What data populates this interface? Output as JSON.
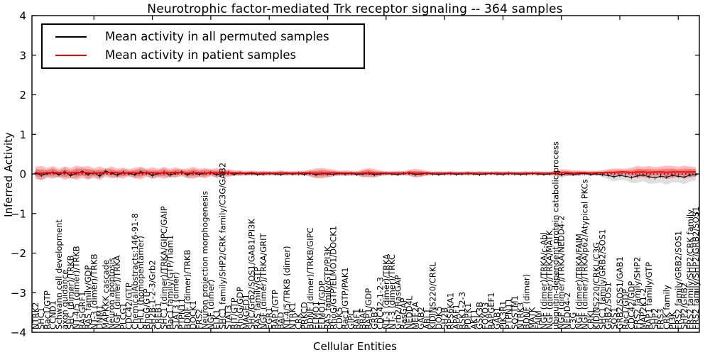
{
  "title": "Neurotrophic factor-mediated Trk receptor signaling -- 364 samples",
  "legend": {
    "permuted": "Mean activity in all permuted samples",
    "patient": "Mean activity in patient samples",
    "position": "upper left"
  },
  "axes": {
    "ylabel": "Inferred Activity",
    "xlabel": "Cellular Entities",
    "ylim": [
      -4,
      4
    ],
    "yticks": [
      4,
      3,
      2,
      1,
      0,
      -1,
      -2,
      -3,
      -4
    ],
    "x_major_tick_every": 10,
    "grid": false
  },
  "colors": {
    "patient_line": "#ff0000",
    "permuted_line": "#000000",
    "patient_band": "#ff0000",
    "patient_band_alpha": 0.26,
    "permuted_band": "#000000",
    "permuted_band_alpha": 0.13,
    "spine": "#000000",
    "background": "#ffffff"
  },
  "chart_data": {
    "type": "line",
    "title": "Neurotrophic factor-mediated Trk receptor signaling -- 364 samples",
    "xlabel": "Cellular Entities",
    "ylabel": "Inferred Activity",
    "ylim": [
      -4,
      4
    ],
    "yticks": [
      4,
      3,
      2,
      1,
      0,
      -1,
      -2,
      -3,
      -4
    ],
    "grid": false,
    "zero_line": "dotted",
    "legend_position": "upper left",
    "categories": [
      "NTRK2",
      "SHC1",
      "Rac1/GTP",
      "CCND1",
      "Schwann cell development",
      "axon guidance",
      "SHC (dimer)/TRKB",
      "NT-4/5 (dimer)/TRKB",
      "RASGRF1",
      "RAS family/GDP",
      "NT-3 (dimer)/TRKB",
      "DNM1",
      "MAPKKK cascade",
      "Neuron apoptosis",
      "NGF (dimer)/TRKA",
      "PLCG1",
      "CDC42/GTP",
      "ChemicalAbstracts:146-91-8",
      "CHL1 (homopentamer)",
      "RhoG/GTP",
      "SH2B-1-2-3/Grb2",
      "CREB1",
      "SHC1 (dimer)/TRKA/GIPC/GAIP",
      "Rac1 family/GTP/Tiam1",
      "STAT3 (dimer)",
      "PTPN11",
      "BDNF (dimer)/TRKB",
      "DOCK1",
      "FRS2",
      "Neuron projection morphogenesis",
      "NGF (dimer)",
      "ELK1",
      "SHC1 family/SHP2/CRK family/C3G/GAB2",
      "STAT3",
      "RIT/GTP",
      "RhoG/GDP",
      "MAGED1",
      "SHC/Grb2/SOS1/GAB1/PI3K",
      "RAS family/GTP",
      "NGF (dimer)/TRKA/GRIT",
      "EGR1",
      "RAP1/GTP",
      "BAD",
      "NT-4/5/TRKB (dimer)",
      "NTRK1",
      "CRK",
      "PRKCD",
      "BDNF (dimer)/TRKB/GIPC",
      "ELMO1",
      "ELMO1/GDP",
      "RAS family/GTP/PI3K",
      "RhoG/GTP/ELMO1/DOCK1",
      "CDK5",
      "Rac1/GTP/PAK1",
      "GIPC",
      "RAF1",
      "BRAF",
      "RAP1/GDP",
      "GRB2",
      "CDC42-1-2-3",
      "NT-3 (dimer)/TRKA",
      "NT-3 (dimer)/TRKC",
      "Grb2/RasGAP",
      "RasGAP",
      "NEDD4L",
      "MEF2A",
      "GAB2",
      "ABL1",
      "KIDINS220/CRKL",
      "DOK5",
      "SH2B",
      "RPS6KA1",
      "APAF1",
      "RSK1-2-3",
      "PDPK1",
      "AKT1",
      "GSK3B",
      "FOXO3",
      "RAPGEF1",
      "GAB1",
      "PIK3R1",
      "PTPN11",
      "SQSTM1",
      "NTRK3",
      "BDNF (dimer)",
      "MATK",
      "FAIM",
      "NGF (dimer)/TRKA/c-Abl",
      "NGF (dimer)/TRKA/MATK",
      "ubiquitin-dependent protein catabolic process",
      "NGF (dimer)/TRKA/NEDD4-2",
      "NEDD4-2",
      "C3G",
      "NGF (dimer)/TRKA/FAIM",
      "NGF (dimer)/TRKA/p62/Atypical PKCs",
      "CRKL",
      "KIDINS220/CRKL/C3G",
      "SHC1 family/GRB2/SOS1",
      "GRB2/SOS1",
      "SOS1",
      "GRB2/SOS1/GAB1",
      "Rac1/GDP",
      "CDC42/GDP",
      "FRS2 family/SHP2",
      "MAP2K1-2",
      "RAP1 family/GTP",
      "SHP2",
      "FRS3",
      "CRK family",
      "PI3K",
      "FRS2 family/GRB2/SOS1",
      "SHP2/GRB2",
      "FRS2 family/SHP2/CRK family",
      "FRS2 family/SHP2/GRB2/SOS1"
    ],
    "series": [
      {
        "name": "Mean activity in all permuted samples",
        "color": "#000000",
        "marker": "+",
        "values": [
          0.02,
          -0.03,
          0.01,
          0.04,
          -0.02,
          0.05,
          -0.04,
          0.02,
          0.06,
          -0.01,
          0.03,
          -0.05,
          0.07,
          0.02,
          -0.03,
          0.04,
          0.01,
          -0.02,
          0.05,
          0.03,
          -0.04,
          0.01,
          0.04,
          -0.03,
          0.02,
          0.05,
          -0.02,
          0.03,
          -0.01,
          0.02,
          0.04,
          -0.02,
          0.01,
          0.03,
          -0.01,
          0.02,
          0.0,
          0.01,
          -0.01,
          0.0,
          0.01,
          0.0,
          -0.01,
          0.01,
          0.0,
          0.01,
          -0.01,
          0.02,
          -0.02,
          0.01,
          0.0,
          -0.01,
          0.01,
          0.0,
          0.01,
          -0.01,
          0.0,
          0.02,
          -0.02,
          0.0,
          0.01,
          0.0,
          -0.01,
          0.01,
          0.02,
          -0.01,
          0.0,
          0.01,
          0.0,
          -0.01,
          0.0,
          0.01,
          -0.01,
          0.0,
          0.01,
          0.0,
          -0.01,
          0.0,
          0.01,
          0.0,
          -0.01,
          0.01,
          0.0,
          -0.01,
          0.0,
          0.01,
          0.0,
          -0.01,
          0.0,
          0.01,
          -0.02,
          0.01,
          -0.01,
          0.0,
          0.01,
          -0.01,
          0.0,
          -0.02,
          -0.04,
          -0.07,
          -0.04,
          -0.06,
          -0.09,
          -0.05,
          -0.03,
          -0.07,
          -0.1,
          -0.06,
          -0.08,
          -0.04,
          -0.06,
          -0.08,
          -0.03,
          -0.02
        ],
        "band_halfwidth": [
          0.11,
          0.13,
          0.09,
          0.12,
          0.08,
          0.13,
          0.09,
          0.13,
          0.1,
          0.13,
          0.09,
          0.12,
          0.08,
          0.11,
          0.08,
          0.1,
          0.07,
          0.1,
          0.12,
          0.08,
          0.1,
          0.08,
          0.11,
          0.08,
          0.1,
          0.07,
          0.09,
          0.11,
          0.08,
          0.1,
          0.07,
          0.09,
          0.06,
          0.08,
          0.05,
          0.05,
          0.04,
          0.05,
          0.04,
          0.05,
          0.04,
          0.04,
          0.05,
          0.04,
          0.04,
          0.05,
          0.04,
          0.07,
          0.09,
          0.1,
          0.08,
          0.06,
          0.05,
          0.05,
          0.05,
          0.04,
          0.08,
          0.09,
          0.08,
          0.05,
          0.04,
          0.04,
          0.05,
          0.04,
          0.06,
          0.08,
          0.07,
          0.05,
          0.03,
          0.04,
          0.03,
          0.04,
          0.03,
          0.03,
          0.04,
          0.03,
          0.04,
          0.03,
          0.03,
          0.04,
          0.03,
          0.04,
          0.03,
          0.03,
          0.04,
          0.03,
          0.04,
          0.03,
          0.03,
          0.05,
          0.07,
          0.06,
          0.05,
          0.05,
          0.04,
          0.05,
          0.04,
          0.05,
          0.09,
          0.12,
          0.11,
          0.1,
          0.14,
          0.17,
          0.15,
          0.18,
          0.14,
          0.16,
          0.19,
          0.17,
          0.15,
          0.18,
          0.16,
          0.14
        ]
      },
      {
        "name": "Mean activity in patient samples",
        "color": "#ff0000",
        "marker": "none",
        "values": [
          0.03,
          0.02,
          0.03,
          0.04,
          0.03,
          0.02,
          0.03,
          0.03,
          0.04,
          0.03,
          0.02,
          0.03,
          0.03,
          0.04,
          0.03,
          0.02,
          0.03,
          0.03,
          0.02,
          0.03,
          0.03,
          0.02,
          0.03,
          0.03,
          0.04,
          0.03,
          0.02,
          0.03,
          0.03,
          0.02,
          0.03,
          0.03,
          0.02,
          0.02,
          0.03,
          0.02,
          0.02,
          0.03,
          0.02,
          0.02,
          0.02,
          0.02,
          0.03,
          0.02,
          0.02,
          0.02,
          0.03,
          0.02,
          0.02,
          0.02,
          0.02,
          0.03,
          0.02,
          0.02,
          0.02,
          0.02,
          0.02,
          0.03,
          0.02,
          0.02,
          0.02,
          0.02,
          0.02,
          0.02,
          0.03,
          0.02,
          0.02,
          0.02,
          0.02,
          0.02,
          0.02,
          0.02,
          0.02,
          0.02,
          0.02,
          0.02,
          0.02,
          0.02,
          0.02,
          0.02,
          0.02,
          0.02,
          0.02,
          0.02,
          0.02,
          0.02,
          0.02,
          0.02,
          0.02,
          0.02,
          0.03,
          0.03,
          0.02,
          0.03,
          0.03,
          0.02,
          0.03,
          0.03,
          0.04,
          0.04,
          0.05,
          0.05,
          0.04,
          0.05,
          0.05,
          0.04,
          0.05,
          0.05,
          0.04,
          0.05,
          0.05,
          0.05,
          0.05,
          0.05
        ],
        "band_halfwidth": [
          0.15,
          0.18,
          0.12,
          0.16,
          0.1,
          0.17,
          0.12,
          0.18,
          0.14,
          0.17,
          0.12,
          0.16,
          0.1,
          0.15,
          0.11,
          0.14,
          0.09,
          0.13,
          0.16,
          0.1,
          0.14,
          0.11,
          0.15,
          0.1,
          0.13,
          0.09,
          0.12,
          0.15,
          0.1,
          0.13,
          0.09,
          0.12,
          0.08,
          0.1,
          0.06,
          0.07,
          0.05,
          0.06,
          0.05,
          0.06,
          0.05,
          0.05,
          0.06,
          0.05,
          0.05,
          0.06,
          0.05,
          0.09,
          0.12,
          0.13,
          0.11,
          0.08,
          0.06,
          0.07,
          0.06,
          0.05,
          0.1,
          0.12,
          0.1,
          0.07,
          0.05,
          0.05,
          0.06,
          0.05,
          0.08,
          0.11,
          0.09,
          0.06,
          0.04,
          0.05,
          0.04,
          0.05,
          0.04,
          0.04,
          0.05,
          0.04,
          0.05,
          0.04,
          0.04,
          0.05,
          0.04,
          0.05,
          0.04,
          0.04,
          0.05,
          0.04,
          0.05,
          0.04,
          0.04,
          0.07,
          0.09,
          0.08,
          0.07,
          0.06,
          0.05,
          0.06,
          0.05,
          0.06,
          0.08,
          0.1,
          0.09,
          0.08,
          0.12,
          0.15,
          0.13,
          0.16,
          0.12,
          0.14,
          0.17,
          0.15,
          0.13,
          0.16,
          0.14,
          0.12
        ]
      }
    ]
  }
}
